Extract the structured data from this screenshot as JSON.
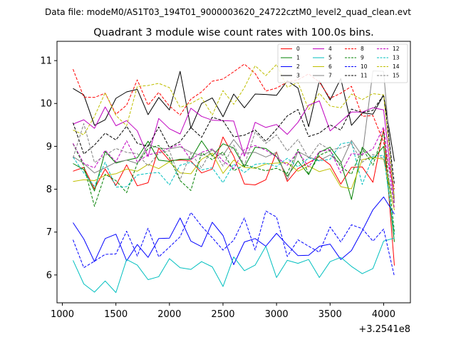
{
  "figure": {
    "suptitle": "Data file: modeM0/AS1T03_194T01_9000003620_24722cztM0_level2_quad_clean.evt"
  },
  "chart_data": {
    "type": "line",
    "title": "Quadrant 3 module wise count rates with 100.0s bins.",
    "xlabel": "",
    "ylabel": "",
    "x_offset_label": "+3.2541e8",
    "xlim": [
      950,
      4250
    ],
    "ylim": [
      5.35,
      11.45
    ],
    "xticks": [
      1000,
      1500,
      2000,
      2500,
      3000,
      3500,
      4000
    ],
    "yticks": [
      6,
      7,
      8,
      9,
      10,
      11
    ],
    "legend_position": "top-right",
    "legend_columns": 4,
    "grid": false,
    "x": [
      1100,
      1200,
      1300,
      1400,
      1500,
      1600,
      1700,
      1800,
      1900,
      2000,
      2100,
      2200,
      2300,
      2400,
      2500,
      2600,
      2700,
      2800,
      2900,
      3000,
      3100,
      3200,
      3300,
      3400,
      3500,
      3600,
      3700,
      3800,
      3900,
      4000,
      4100
    ],
    "series": [
      {
        "name": "0",
        "color": "#ff0000",
        "style": "solid",
        "values": [
          8.42,
          8.51,
          8.01,
          8.47,
          8.09,
          8.57,
          8.08,
          8.15,
          8.96,
          8.67,
          8.68,
          8.66,
          8.38,
          8.47,
          9.22,
          8.77,
          8.12,
          8.1,
          8.22,
          8.87,
          8.18,
          8.48,
          8.62,
          8.76,
          8.57,
          8.12,
          8.51,
          8.52,
          8.16,
          9.4,
          6.22
        ]
      },
      {
        "name": "1",
        "color": "#008000",
        "style": "solid",
        "values": [
          8.6,
          8.46,
          7.96,
          8.88,
          8.61,
          8.68,
          8.73,
          9.12,
          8.68,
          8.65,
          8.7,
          8.7,
          9.13,
          8.77,
          9.06,
          8.96,
          8.52,
          8.98,
          8.95,
          8.76,
          8.3,
          8.66,
          8.34,
          8.86,
          8.98,
          8.64,
          7.76,
          8.98,
          8.7,
          9.0,
          6.77
        ]
      },
      {
        "name": "2",
        "color": "#0000ff",
        "style": "solid",
        "values": [
          7.22,
          6.84,
          6.31,
          6.85,
          6.95,
          6.33,
          6.71,
          6.41,
          6.85,
          6.86,
          7.33,
          6.79,
          6.66,
          7.23,
          6.92,
          6.24,
          6.77,
          6.85,
          6.67,
          6.97,
          6.7,
          6.45,
          6.46,
          6.67,
          6.72,
          6.36,
          6.57,
          7.03,
          7.52,
          7.82,
          7.42
        ]
      },
      {
        "name": "3",
        "color": "#000000",
        "style": "solid",
        "values": [
          10.35,
          10.2,
          9.49,
          9.62,
          10.12,
          10.27,
          10.33,
          9.74,
          10.14,
          9.85,
          10.75,
          9.42,
          10.0,
          10.13,
          9.69,
          10.22,
          9.9,
          10.22,
          10.21,
          10.19,
          10.53,
          10.36,
          9.46,
          10.53,
          10.08,
          10.58,
          9.49,
          9.78,
          9.75,
          10.2,
          8.65
        ]
      },
      {
        "name": "4",
        "color": "#bf00bf",
        "style": "solid",
        "values": [
          9.52,
          9.62,
          9.42,
          9.92,
          9.48,
          9.6,
          9.36,
          8.76,
          9.65,
          9.41,
          9.29,
          9.89,
          9.7,
          9.61,
          9.6,
          9.59,
          8.77,
          9.56,
          9.44,
          9.51,
          9.28,
          9.56,
          9.96,
          10.06,
          9.36,
          9.58,
          9.8,
          9.8,
          9.9,
          9.85,
          7.68
        ]
      },
      {
        "name": "5",
        "color": "#00bfbf",
        "style": "solid",
        "values": [
          6.34,
          5.79,
          5.6,
          5.86,
          5.59,
          6.36,
          6.23,
          5.89,
          5.96,
          6.38,
          6.17,
          6.13,
          6.31,
          6.19,
          5.73,
          6.42,
          6.1,
          6.23,
          6.67,
          5.94,
          6.34,
          6.27,
          6.36,
          5.94,
          6.31,
          6.41,
          6.2,
          6.03,
          6.15,
          6.79,
          6.86
        ]
      },
      {
        "name": "6",
        "color": "#bfbf00",
        "style": "solid",
        "values": [
          8.18,
          8.22,
          8.2,
          8.32,
          8.36,
          8.47,
          8.42,
          8.58,
          8.48,
          8.64,
          8.38,
          8.36,
          8.7,
          8.84,
          8.37,
          8.68,
          8.51,
          8.49,
          8.59,
          8.61,
          8.62,
          8.42,
          8.54,
          8.41,
          8.48,
          8.06,
          8.01,
          8.69,
          8.74,
          8.7,
          7.51
        ]
      },
      {
        "name": "7",
        "color": "#808080",
        "style": "solid",
        "values": [
          8.76,
          8.6,
          8.38,
          8.5,
          8.63,
          8.68,
          8.6,
          9.04,
          8.96,
          8.94,
          8.99,
          8.86,
          8.78,
          8.91,
          8.79,
          9.16,
          8.84,
          8.86,
          8.75,
          8.86,
          8.22,
          8.88,
          8.75,
          8.67,
          8.8,
          8.59,
          9.14,
          8.78,
          10.76,
          10.75,
          7.78
        ]
      },
      {
        "name": "8",
        "color": "#ff0000",
        "style": "dashed",
        "values": [
          10.8,
          10.15,
          10.14,
          10.24,
          9.75,
          9.96,
          10.55,
          9.96,
          10.26,
          9.94,
          9.73,
          10.1,
          10.27,
          10.52,
          10.57,
          10.74,
          10.92,
          10.7,
          10.29,
          10.36,
          10.5,
          10.55,
          10.69,
          10.5,
          10.12,
          10.24,
          10.4,
          9.7,
          9.72,
          9.1,
          8.0
        ]
      },
      {
        "name": "9",
        "color": "#008000",
        "style": "dashed",
        "values": [
          9.06,
          8.55,
          7.6,
          8.35,
          8.2,
          7.92,
          8.6,
          8.95,
          9.02,
          8.74,
          8.2,
          7.97,
          8.85,
          8.69,
          8.87,
          8.43,
          8.57,
          8.5,
          8.43,
          8.49,
          8.37,
          8.93,
          8.36,
          8.79,
          8.9,
          8.53,
          8.35,
          8.95,
          8.56,
          9.33,
          7.01
        ]
      },
      {
        "name": "10",
        "color": "#0000ff",
        "style": "dashed",
        "values": [
          6.82,
          6.17,
          6.32,
          6.48,
          6.49,
          7.02,
          6.44,
          7.09,
          6.42,
          6.65,
          6.89,
          7.46,
          7.14,
          6.87,
          6.58,
          6.81,
          7.33,
          6.58,
          7.49,
          7.35,
          6.43,
          6.82,
          6.67,
          6.53,
          7.12,
          6.77,
          7.17,
          7.08,
          6.79,
          7.07,
          5.97
        ]
      },
      {
        "name": "11",
        "color": "#000000",
        "style": "dashed",
        "values": [
          9.55,
          8.82,
          9.03,
          9.31,
          9.15,
          9.47,
          9.07,
          9.0,
          9.45,
          8.97,
          9.11,
          9.44,
          9.21,
          9.68,
          9.6,
          9.22,
          9.26,
          9.38,
          9.12,
          9.4,
          9.71,
          9.86,
          9.23,
          9.31,
          9.5,
          9.38,
          9.87,
          9.79,
          9.84,
          10.2,
          8.13
        ]
      },
      {
        "name": "12",
        "color": "#bf00bf",
        "style": "dashed",
        "values": [
          9.07,
          8.6,
          8.5,
          8.91,
          8.64,
          9.13,
          8.64,
          8.8,
          8.86,
          8.96,
          9.05,
          8.69,
          8.86,
          8.94,
          8.66,
          8.48,
          8.93,
          9.02,
          8.91,
          8.75,
          8.56,
          8.88,
          8.52,
          8.88,
          8.92,
          8.38,
          8.83,
          8.81,
          8.94,
          9.45,
          7.54
        ]
      },
      {
        "name": "13",
        "color": "#00bfbf",
        "style": "dashed",
        "values": [
          8.75,
          8.38,
          8.07,
          8.63,
          8.05,
          8.06,
          8.33,
          8.37,
          8.39,
          8.1,
          8.56,
          8.63,
          8.45,
          8.5,
          8.15,
          8.59,
          8.39,
          8.58,
          8.61,
          8.53,
          8.72,
          8.52,
          8.73,
          8.66,
          8.7,
          9.06,
          9.1,
          8.11,
          8.77,
          8.79,
          6.94
        ]
      },
      {
        "name": "14",
        "color": "#bfbf00",
        "style": "dashed",
        "values": [
          9.38,
          9.27,
          9.7,
          10.25,
          9.72,
          9.48,
          10.4,
          10.42,
          10.47,
          10.37,
          9.91,
          10.0,
          10.14,
          9.73,
          10.3,
          9.98,
          10.37,
          10.88,
          10.65,
          10.91,
          10.38,
          10.49,
          9.86,
          10.24,
          9.94,
          9.9,
          10.22,
          10.09,
          10.23,
          10.2,
          7.75
        ]
      },
      {
        "name": "15",
        "color": "#808080",
        "style": "dashed",
        "values": [
          8.73,
          9.53,
          8.62,
          8.79,
          8.95,
          8.86,
          8.83,
          8.54,
          8.84,
          8.9,
          8.22,
          8.84,
          8.5,
          8.95,
          8.54,
          9.03,
          8.56,
          9.33,
          9.07,
          9.27,
          8.89,
          9.16,
          8.72,
          9.07,
          8.92,
          8.96,
          9.06,
          8.63,
          8.81,
          8.72,
          7.68
        ]
      }
    ]
  }
}
